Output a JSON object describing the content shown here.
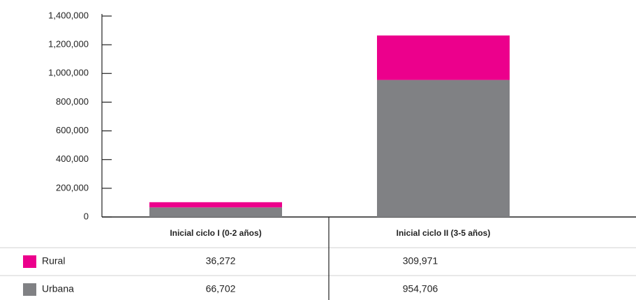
{
  "chart_data": {
    "type": "bar",
    "stacked": true,
    "categories": [
      "Inicial ciclo I (0-2 años)",
      "Inicial ciclo II (3-5 años)"
    ],
    "series": [
      {
        "name": "Rural",
        "color": "#ec008c",
        "values": [
          36272,
          309971
        ],
        "value_labels": [
          "36,272",
          "309,971"
        ]
      },
      {
        "name": "Urbana",
        "color": "#808184",
        "values": [
          66702,
          954706
        ],
        "value_labels": [
          "66,702",
          "954,706"
        ]
      }
    ],
    "ylim": [
      0,
      1400000
    ],
    "yticks": [
      0,
      {
        "value": 200000,
        "label": "200,000"
      },
      {
        "value": 400000,
        "label": "400,000"
      },
      {
        "value": 600000,
        "label": "600,000"
      },
      {
        "value": 800000,
        "label": "800,000"
      },
      {
        "value": 1000000,
        "label": "1,000,000"
      },
      {
        "value": 1200000,
        "label": "1,200,000"
      },
      {
        "value": 1400000,
        "label": "1,400,000"
      }
    ]
  }
}
